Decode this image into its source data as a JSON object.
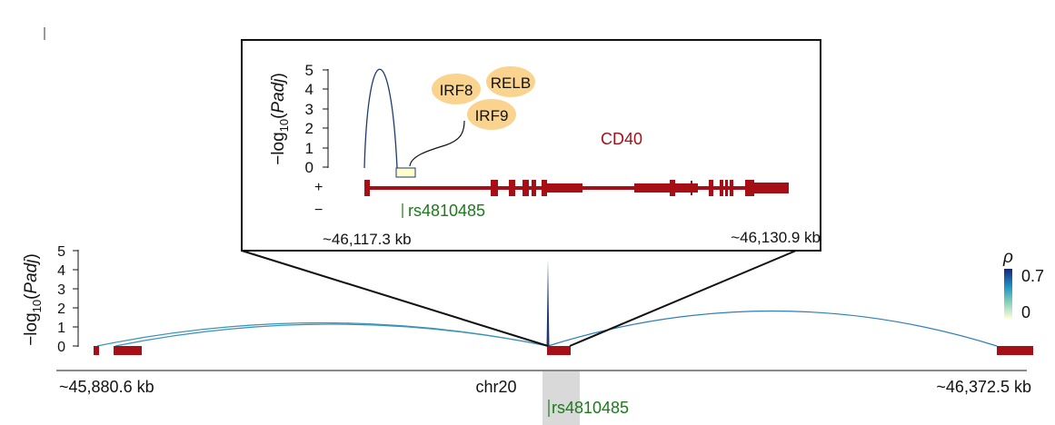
{
  "inset": {
    "y_axis_label_prefix": "−log",
    "y_axis_label_sub": "10",
    "y_axis_label_open": "(",
    "y_axis_label_var": "Padj",
    "y_axis_label_close": ")",
    "y_ticks": [
      "5",
      "4",
      "3",
      "2",
      "1",
      "0"
    ],
    "strand_plus": "+",
    "strand_minus": "−",
    "tf_labels": [
      "IRF8",
      "RELB",
      "IRF9"
    ],
    "gene_label": "CD40",
    "snp_label": "rs4810485",
    "x_start_label": "~46,117.3 kb",
    "x_end_label": "~46,130.9 kb",
    "peak_value": 4.5
  },
  "main": {
    "y_axis_label_prefix": "−log",
    "y_axis_label_sub": "10",
    "y_axis_label_open": "(",
    "y_axis_label_var": "Padj",
    "y_axis_label_close": ")",
    "y_ticks": [
      "5",
      "4",
      "3",
      "2",
      "1",
      "0"
    ],
    "x_start_label": "~45,880.6 kb",
    "x_center_label": "chr20",
    "x_end_label": "~46,372.5 kb",
    "snp_label": "rs4810485",
    "spike_value": 4.5,
    "arc_heights": [
      1.2,
      1.15,
      1.8
    ]
  },
  "colorbar": {
    "title": "ρ",
    "max_label": "0.7",
    "min_label": "0",
    "low_color": "#ffffd9",
    "high_color": "#1a237e"
  },
  "colors": {
    "gene": "#a50f15",
    "snp": "#1b7a1b",
    "tf_fill": "#fad48f",
    "arc_dark": "#1f3a6e",
    "arc_teal": "#3a93b8",
    "highlight": "#d9d9d9"
  }
}
